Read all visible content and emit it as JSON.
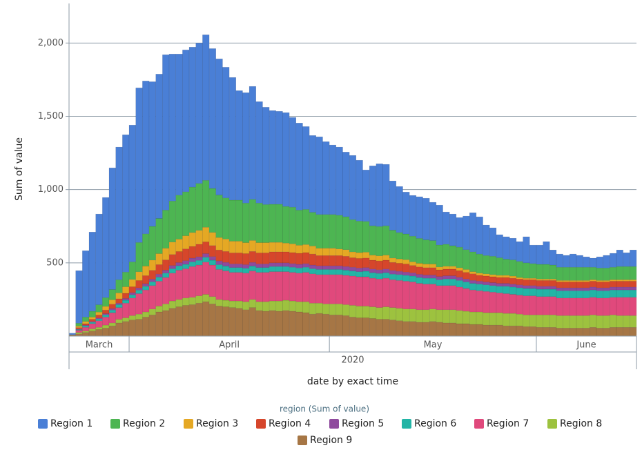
{
  "chart_data": {
    "type": "stacked_bar",
    "y_label": "Sum of value",
    "x_label": "date by exact time",
    "x_group_label": "2020",
    "legend_title": "region (Sum of value)",
    "ylim": [
      0,
      2270
    ],
    "yticks": [
      500,
      {
        "value": 1000,
        "label": "1,000"
      },
      {
        "value": 1500,
        "label": "1,500"
      },
      {
        "value": 2000,
        "label": "2,000"
      }
    ],
    "grid": true,
    "categories": [
      "March",
      "March",
      "March",
      "March",
      "March",
      "March",
      "March",
      "March",
      "March",
      "April",
      "April",
      "April",
      "April",
      "April",
      "April",
      "April",
      "April",
      "April",
      "April",
      "April",
      "April",
      "April",
      "April",
      "April",
      "April",
      "April",
      "April",
      "April",
      "April",
      "April",
      "April",
      "April",
      "April",
      "April",
      "April",
      "April",
      "April",
      "April",
      "April",
      "May",
      "May",
      "May",
      "May",
      "May",
      "May",
      "May",
      "May",
      "May",
      "May",
      "May",
      "May",
      "May",
      "May",
      "May",
      "May",
      "May",
      "May",
      "May",
      "May",
      "May",
      "May",
      "May",
      "May",
      "May",
      "May",
      "May",
      "May",
      "May",
      "May",
      "May",
      "June",
      "June",
      "June",
      "June",
      "June",
      "June",
      "June",
      "June",
      "June",
      "June",
      "June",
      "June",
      "June",
      "June",
      "June"
    ],
    "series": [
      {
        "name": "Region 1",
        "color": "#4a7fd6",
        "values": [
          10,
          359,
          453,
          540,
          619,
          683,
          830,
          905,
          937,
          933,
          1055,
          1043,
          987,
          985,
          1060,
          1003,
          963,
          968,
          955,
          958,
          993,
          954,
          929,
          892,
          837,
          747,
          753,
          771,
          692,
          664,
          639,
          634,
          640,
          612,
          594,
          565,
          524,
          530,
          497,
          474,
          465,
          441,
          438,
          415,
          351,
          409,
          428,
          419,
          336,
          314,
          286,
          278,
          284,
          284,
          261,
          272,
          220,
          216,
          202,
          229,
          267,
          254,
          208,
          194,
          157,
          153,
          148,
          135,
          178,
          126,
          131,
          155,
          103,
          90,
          81,
          90,
          81,
          71,
          62,
          76,
          86,
          95,
          113,
          94,
          113
        ]
      },
      {
        "name": "Region 2",
        "color": "#4db552",
        "values": [
          0,
          20,
          30,
          40,
          50,
          60,
          70,
          90,
          100,
          120,
          200,
          220,
          230,
          240,
          260,
          280,
          300,
          300,
          310,
          320,
          320,
          300,
          290,
          280,
          280,
          280,
          270,
          280,
          270,
          260,
          260,
          260,
          250,
          250,
          240,
          240,
          230,
          230,
          230,
          230,
          230,
          225,
          220,
          215,
          210,
          200,
          200,
          200,
          190,
          180,
          175,
          175,
          170,
          165,
          160,
          150,
          150,
          140,
          140,
          135,
          135,
          130,
          125,
          125,
          120,
          110,
          110,
          110,
          105,
          100,
          100,
          100,
          95,
          90,
          90,
          90,
          90,
          90,
          85,
          85,
          85,
          85,
          90,
          90,
          90
        ]
      },
      {
        "name": "Region 3",
        "color": "#e5a824",
        "values": [
          0,
          10,
          15,
          15,
          20,
          25,
          30,
          40,
          45,
          50,
          60,
          65,
          70,
          75,
          80,
          85,
          85,
          90,
          95,
          95,
          100,
          90,
          85,
          85,
          80,
          80,
          75,
          75,
          70,
          70,
          65,
          65,
          60,
          60,
          55,
          55,
          55,
          50,
          50,
          50,
          45,
          45,
          40,
          40,
          40,
          35,
          35,
          35,
          30,
          30,
          30,
          25,
          25,
          25,
          25,
          20,
          20,
          20,
          20,
          20,
          15,
          15,
          15,
          15,
          15,
          15,
          15,
          10,
          10,
          10,
          10,
          10,
          10,
          10,
          10,
          10,
          10,
          10,
          10,
          10,
          10,
          10,
          10,
          10,
          10
        ]
      },
      {
        "name": "Region 4",
        "color": "#d6462b",
        "values": [
          0,
          10,
          10,
          15,
          20,
          25,
          30,
          30,
          35,
          40,
          50,
          55,
          60,
          65,
          70,
          75,
          75,
          80,
          80,
          85,
          80,
          75,
          75,
          75,
          75,
          75,
          75,
          75,
          75,
          75,
          75,
          75,
          75,
          75,
          75,
          75,
          75,
          70,
          70,
          70,
          70,
          70,
          65,
          65,
          65,
          60,
          60,
          60,
          55,
          55,
          55,
          50,
          50,
          50,
          50,
          45,
          45,
          45,
          45,
          45,
          45,
          40,
          40,
          40,
          40,
          40,
          40,
          40,
          40,
          40,
          40,
          40,
          40,
          40,
          40,
          40,
          40,
          40,
          40,
          40,
          40,
          40,
          40,
          40,
          40
        ]
      },
      {
        "name": "Region 5",
        "color": "#8f4a9e",
        "values": [
          0,
          3,
          5,
          5,
          7,
          8,
          10,
          10,
          12,
          15,
          15,
          18,
          18,
          20,
          20,
          22,
          22,
          25,
          25,
          25,
          25,
          25,
          25,
          25,
          25,
          25,
          25,
          25,
          25,
          25,
          25,
          25,
          25,
          25,
          25,
          25,
          25,
          25,
          25,
          25,
          25,
          25,
          25,
          25,
          25,
          25,
          25,
          25,
          25,
          22,
          22,
          22,
          22,
          22,
          22,
          22,
          22,
          22,
          22,
          20,
          20,
          20,
          20,
          20,
          20,
          20,
          20,
          20,
          20,
          20,
          20,
          20,
          20,
          20,
          20,
          20,
          20,
          20,
          20,
          20,
          20,
          20,
          20,
          20,
          20
        ]
      },
      {
        "name": "Region 6",
        "color": "#22b5a6",
        "values": [
          0,
          5,
          10,
          10,
          12,
          15,
          18,
          20,
          20,
          22,
          24,
          25,
          26,
          28,
          30,
          30,
          30,
          30,
          32,
          32,
          33,
          33,
          33,
          33,
          33,
          33,
          33,
          33,
          33,
          33,
          35,
          35,
          35,
          35,
          35,
          35,
          35,
          35,
          35,
          35,
          35,
          35,
          35,
          35,
          38,
          38,
          38,
          38,
          38,
          40,
          40,
          40,
          40,
          40,
          40,
          40,
          45,
          45,
          45,
          45,
          45,
          45,
          45,
          45,
          45,
          50,
          50,
          50,
          50,
          50,
          50,
          50,
          50,
          50,
          50,
          50,
          50,
          50,
          50,
          50,
          50,
          50,
          50,
          50,
          50
        ]
      },
      {
        "name": "Region 7",
        "color": "#e0497c",
        "values": [
          2,
          15,
          25,
          35,
          45,
          55,
          70,
          80,
          100,
          120,
          140,
          150,
          160,
          170,
          180,
          190,
          200,
          200,
          210,
          210,
          220,
          215,
          205,
          200,
          195,
          195,
          195,
          195,
          200,
          200,
          200,
          200,
          195,
          195,
          195,
          200,
          200,
          195,
          200,
          200,
          200,
          200,
          200,
          200,
          200,
          195,
          195,
          195,
          190,
          190,
          190,
          185,
          180,
          175,
          170,
          165,
          165,
          165,
          160,
          155,
          150,
          145,
          145,
          140,
          135,
          135,
          130,
          130,
          130,
          130,
          125,
          125,
          125,
          120,
          120,
          120,
          120,
          120,
          120,
          120,
          120,
          120,
          125,
          125,
          125
        ]
      },
      {
        "name": "Region 8",
        "color": "#9dc23f",
        "values": [
          3,
          10,
          10,
          15,
          15,
          20,
          20,
          25,
          25,
          30,
          35,
          35,
          40,
          40,
          45,
          50,
          50,
          50,
          50,
          50,
          50,
          50,
          45,
          45,
          45,
          50,
          55,
          55,
          60,
          65,
          65,
          70,
          70,
          70,
          70,
          75,
          75,
          70,
          70,
          75,
          75,
          75,
          80,
          80,
          80,
          80,
          80,
          85,
          85,
          85,
          85,
          85,
          85,
          85,
          85,
          85,
          90,
          90,
          90,
          85,
          85,
          85,
          85,
          85,
          85,
          85,
          85,
          80,
          80,
          80,
          85,
          85,
          85,
          85,
          85,
          85,
          85,
          85,
          85,
          85,
          85,
          85,
          80,
          80,
          80
        ]
      },
      {
        "name": "Region 9",
        "color": "#a67645",
        "values": [
          5,
          15,
          25,
          35,
          45,
          55,
          70,
          90,
          100,
          110,
          115,
          130,
          145,
          165,
          175,
          190,
          200,
          210,
          215,
          225,
          235,
          220,
          205,
          200,
          195,
          190,
          180,
          195,
          175,
          170,
          175,
          170,
          175,
          170,
          165,
          160,
          150,
          155,
          150,
          145,
          145,
          140,
          130,
          125,
          125,
          120,
          115,
          115,
          110,
          105,
          100,
          100,
          95,
          95,
          100,
          95,
          90,
          90,
          85,
          85,
          80,
          80,
          75,
          75,
          75,
          70,
          70,
          70,
          65,
          65,
          60,
          60,
          60,
          55,
          55,
          55,
          55,
          55,
          60,
          55,
          55,
          60,
          60,
          60,
          60
        ]
      }
    ]
  }
}
